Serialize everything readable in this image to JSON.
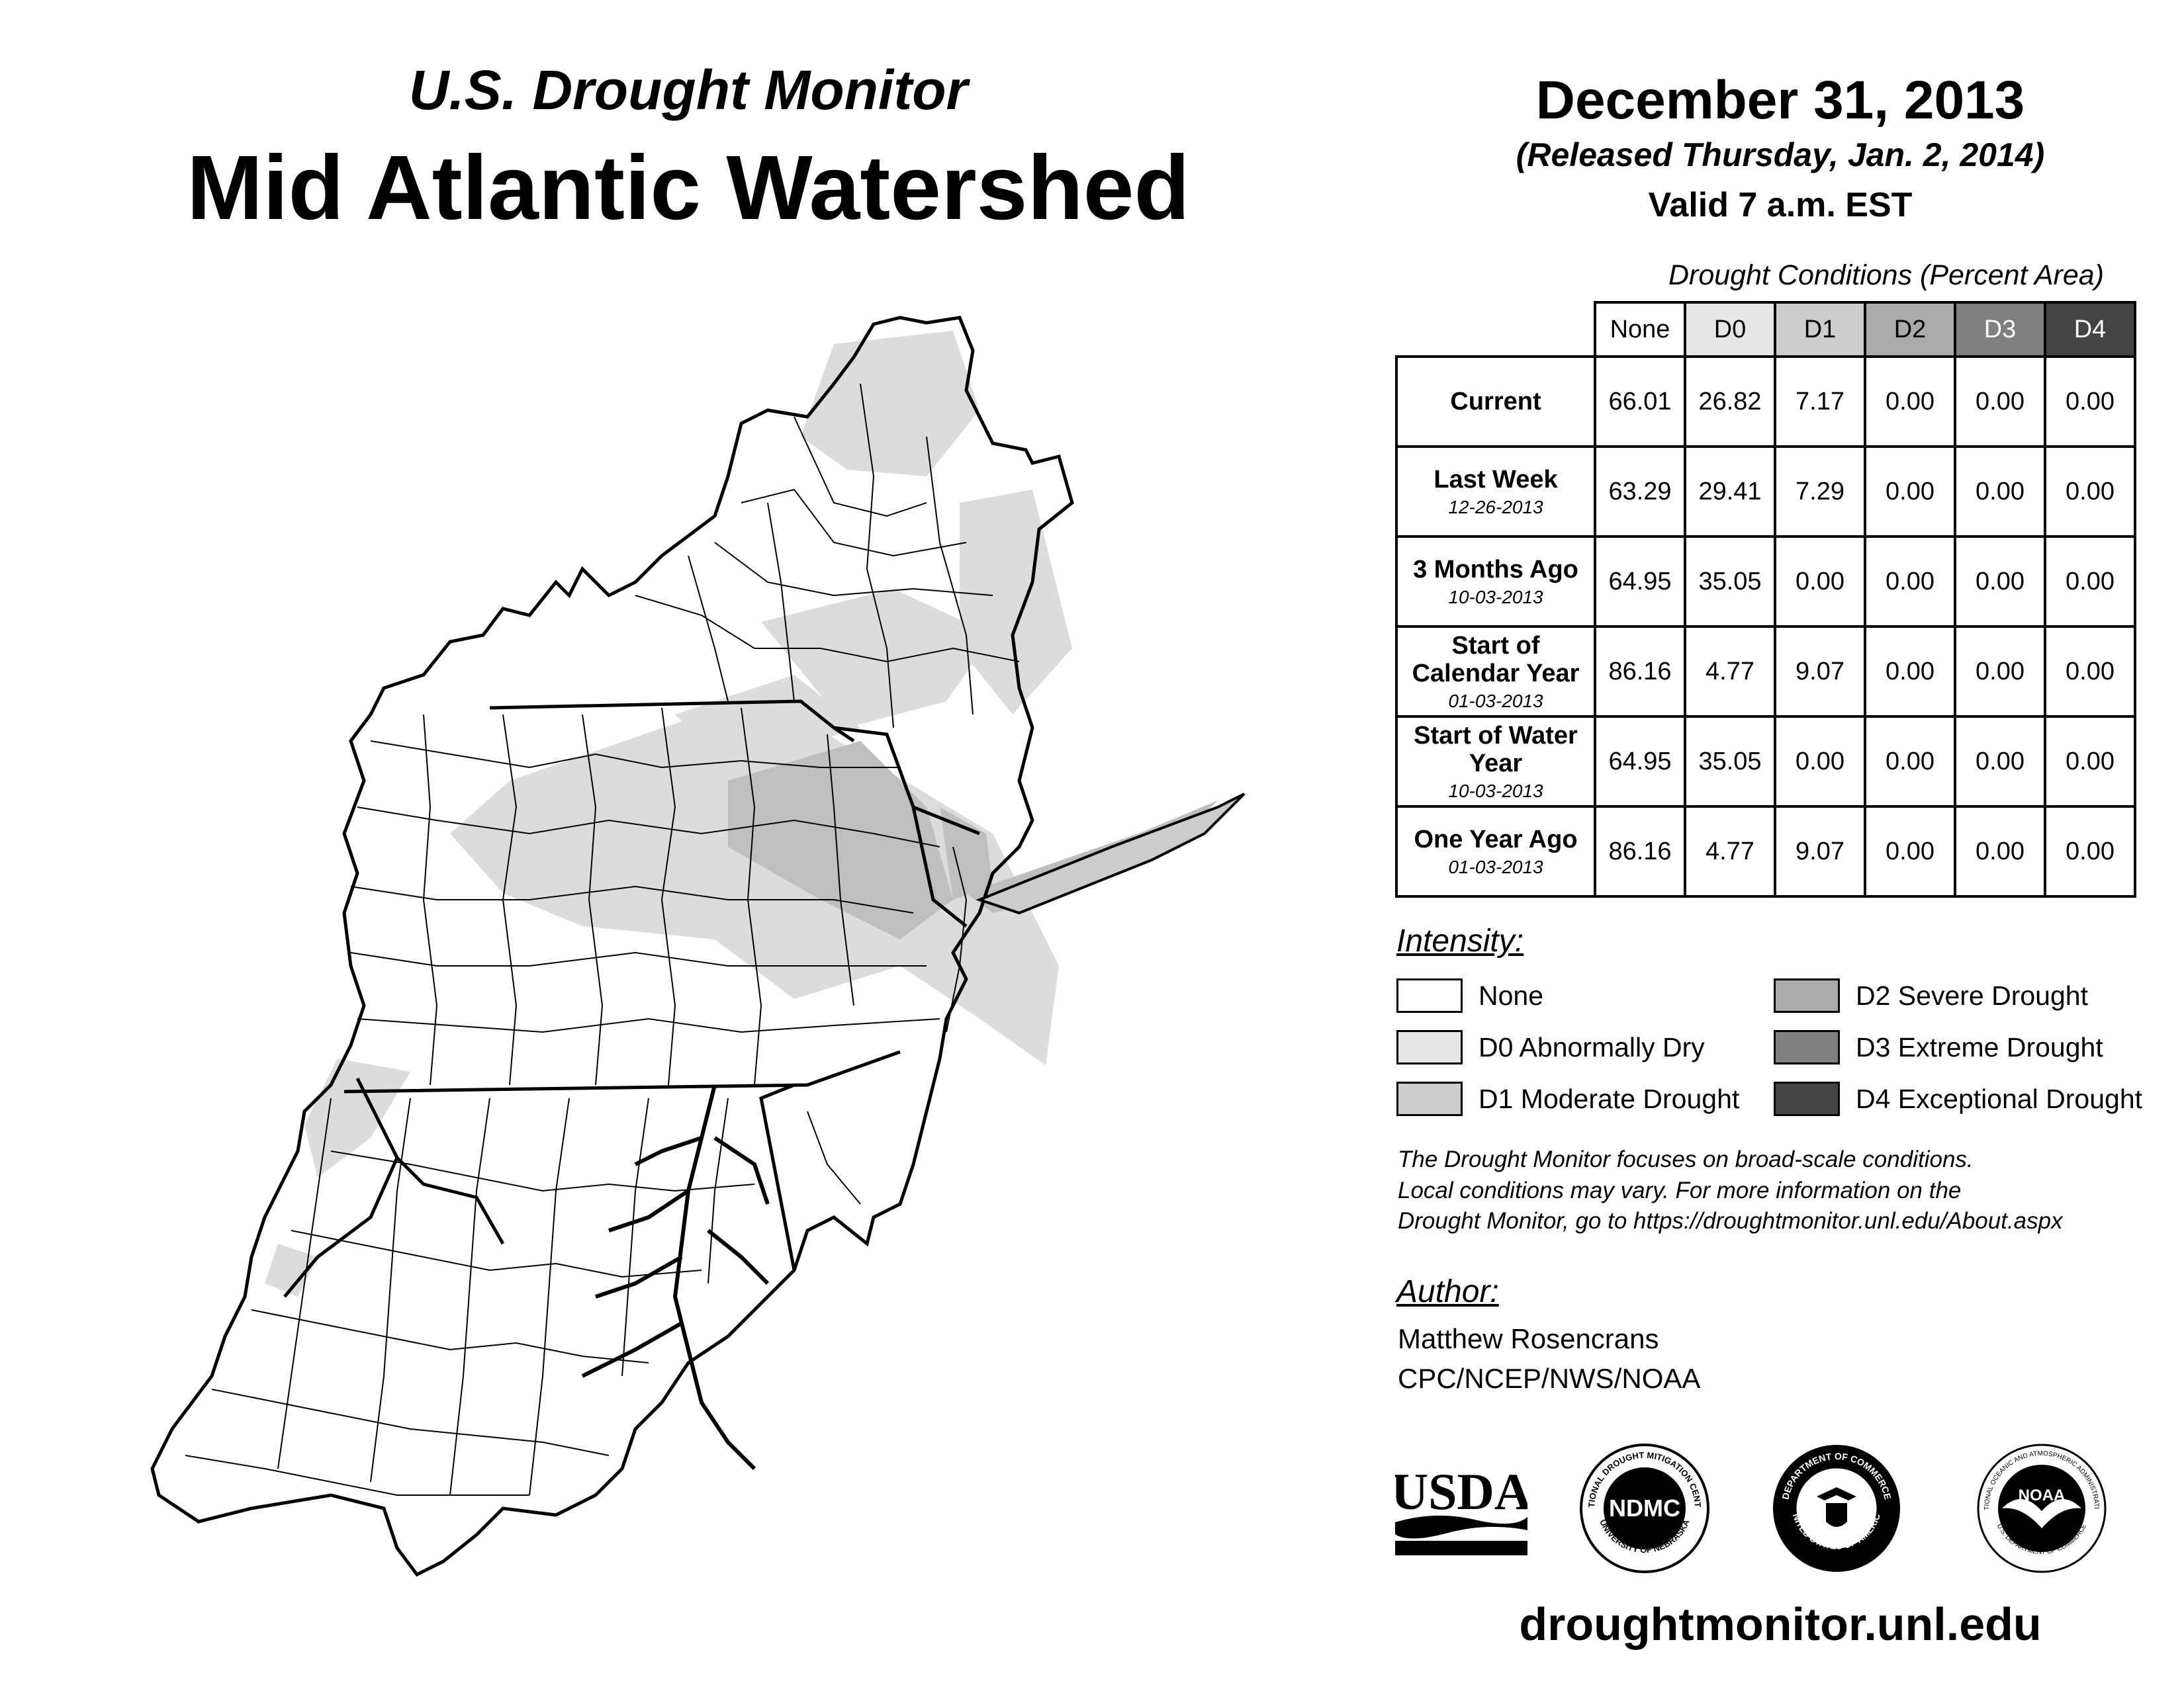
{
  "header": {
    "subtitle": "U.S. Drought Monitor",
    "title": "Mid Atlantic Watershed",
    "date": "December 31, 2013",
    "released": "(Released Thursday, Jan. 2, 2014)",
    "valid": "Valid 7 a.m. EST"
  },
  "table": {
    "caption": "Drought Conditions (Percent Area)",
    "columns": [
      "None",
      "D0",
      "D1",
      "D2",
      "D3",
      "D4"
    ],
    "column_colors": [
      "#ffffff",
      "#e6e6e6",
      "#cccccc",
      "#aaaaaa",
      "#7f7f7f",
      "#444444"
    ],
    "column_text_colors": [
      "#000000",
      "#000000",
      "#000000",
      "#000000",
      "#ffffff",
      "#ffffff"
    ],
    "rows": [
      {
        "label": "Current",
        "sub": "",
        "values": [
          "66.01",
          "26.82",
          "7.17",
          "0.00",
          "0.00",
          "0.00"
        ]
      },
      {
        "label": "Last Week",
        "sub": "12-26-2013",
        "values": [
          "63.29",
          "29.41",
          "7.29",
          "0.00",
          "0.00",
          "0.00"
        ]
      },
      {
        "label": "3 Months Ago",
        "sub": "10-03-2013",
        "values": [
          "64.95",
          "35.05",
          "0.00",
          "0.00",
          "0.00",
          "0.00"
        ]
      },
      {
        "label": "Start of Calendar Year",
        "sub": "01-03-2013",
        "values": [
          "86.16",
          "4.77",
          "9.07",
          "0.00",
          "0.00",
          "0.00"
        ]
      },
      {
        "label": "Start of Water Year",
        "sub": "10-03-2013",
        "values": [
          "64.95",
          "35.05",
          "0.00",
          "0.00",
          "0.00",
          "0.00"
        ]
      },
      {
        "label": "One Year Ago",
        "sub": "01-03-2013",
        "values": [
          "86.16",
          "4.77",
          "9.07",
          "0.00",
          "0.00",
          "0.00"
        ]
      }
    ]
  },
  "legend": {
    "heading": "Intensity:",
    "items": [
      {
        "label": "None",
        "color": "#ffffff"
      },
      {
        "label": "D0 Abnormally Dry",
        "color": "#e6e6e6"
      },
      {
        "label": "D1 Moderate Drought",
        "color": "#cccccc"
      },
      {
        "label": "D2 Severe Drought",
        "color": "#aaaaaa"
      },
      {
        "label": "D3 Extreme Drought",
        "color": "#7f7f7f"
      },
      {
        "label": "D4 Exceptional Drought",
        "color": "#444444"
      }
    ]
  },
  "note": {
    "line1": "The Drought Monitor focuses on broad-scale conditions.",
    "line2": "Local conditions may vary. For more information on the",
    "line3": "Drought Monitor, go to https://droughtmonitor.unl.edu/About.aspx"
  },
  "author": {
    "heading": "Author:",
    "name": "Matthew Rosencrans",
    "org": "CPC/NCEP/NWS/NOAA"
  },
  "logos": {
    "usda": "USDA",
    "ndmc": "NDMC",
    "ndmc_ring_top": "NATIONAL DROUGHT MITIGATION CENTER",
    "ndmc_ring_bottom": "UNIVERSITY OF NEBRASKA",
    "doc_ring_top": "DEPARTMENT OF COMMERCE",
    "doc_ring_bottom": "UNITED STATES OF AMERICA",
    "noaa": "NOAA",
    "noaa_ring_top": "NATIONAL OCEANIC AND ATMOSPHERIC ADMINISTRATION",
    "noaa_ring_bottom": "U.S. DEPARTMENT OF COMMERCE"
  },
  "footer": {
    "site": "droughtmonitor.unl.edu"
  }
}
